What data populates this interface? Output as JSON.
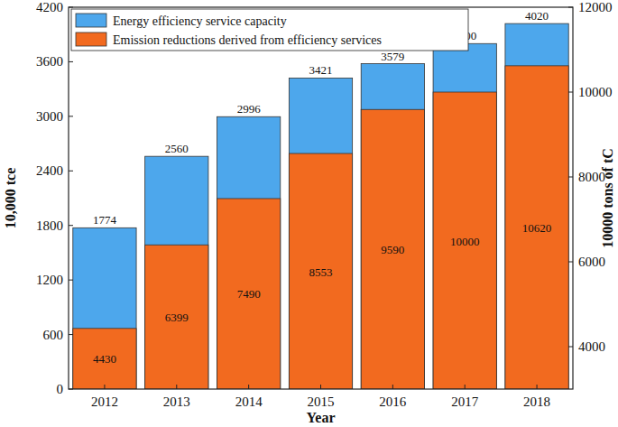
{
  "chart_data": {
    "type": "bar",
    "x_label": "Year",
    "y_label": "10,000 tce",
    "y2_label": "10000 tons of tC",
    "categories": [
      "2012",
      "2013",
      "2014",
      "2015",
      "2016",
      "2017",
      "2018"
    ],
    "series": [
      {
        "name": "Energy efficiency service capacity",
        "color": "#4da7ec",
        "values": [
          1774,
          2560,
          2996,
          3421,
          3579,
          3800,
          4020
        ]
      },
      {
        "name": "Emission reductions derived from efficiency services",
        "color": "#f26a1f",
        "axis": "y2",
        "values": [
          4430,
          6399,
          7490,
          8553,
          9590,
          10000,
          10620
        ]
      }
    ],
    "ylim": [
      0,
      4200
    ],
    "yticks": [
      0,
      600,
      1200,
      1800,
      2400,
      3000,
      3600,
      4200
    ],
    "y2lim": [
      3000,
      12000
    ],
    "y2ticks": [
      4000,
      6000,
      8000,
      10000,
      12000
    ],
    "data_labels": true,
    "legend": "upper left",
    "grid": false
  }
}
